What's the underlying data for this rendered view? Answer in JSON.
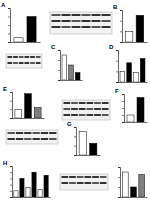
{
  "chart_data": [
    {
      "type": "bar",
      "title": "A",
      "categories": [
        null,
        null
      ],
      "values": [
        1,
        6
      ],
      "colors": [
        "#ffffff",
        "#000000"
      ],
      "ylim": [
        0,
        8
      ],
      "yticks": [
        0,
        2,
        4,
        6,
        8
      ],
      "tick_labels": false
    },
    {
      "type": "bar",
      "title": "B",
      "categories": [
        null,
        null
      ],
      "values": [
        1,
        2.5
      ],
      "colors": [
        "#ffffff",
        "#000000"
      ],
      "ylim": [
        0,
        3
      ],
      "yticks": [
        0,
        1,
        2,
        3
      ],
      "tick_labels": false
    },
    {
      "type": "bar",
      "title": "C",
      "categories": [
        null,
        null,
        null
      ],
      "values": [
        1,
        0.6,
        0.3
      ],
      "colors": [
        "#ffffff",
        "#808080",
        "#000000"
      ],
      "ylim": [
        0,
        1.2
      ],
      "yticks": [
        0,
        0.4,
        0.8,
        1.2
      ],
      "tick_labels": false
    },
    {
      "type": "bar",
      "title": "D",
      "categories": [
        null,
        null,
        null,
        null
      ],
      "values": [
        1,
        1.8,
        0.9,
        2.2
      ],
      "colors": [
        "#ffffff",
        "#000000",
        "#ffffff",
        "#000000"
      ],
      "ylim": [
        0,
        3
      ],
      "yticks": [
        0,
        1,
        2,
        3
      ],
      "tick_labels": false
    },
    {
      "type": "bar",
      "title": "E",
      "categories": [
        null,
        null,
        null
      ],
      "values": [
        1,
        2.8,
        1.2
      ],
      "colors": [
        "#ffffff",
        "#000000",
        "#808080"
      ],
      "ylim": [
        0,
        3
      ],
      "yticks": [
        0,
        1,
        2,
        3
      ],
      "tick_labels": false
    },
    {
      "type": "bar",
      "title": "F",
      "categories": [
        null,
        null
      ],
      "values": [
        1,
        3.5
      ],
      "colors": [
        "#ffffff",
        "#000000"
      ],
      "ylim": [
        0,
        4
      ],
      "yticks": [
        0,
        1,
        2,
        3,
        4
      ],
      "tick_labels": false
    },
    {
      "type": "bar",
      "title": "G",
      "categories": [
        null,
        null
      ],
      "values": [
        1,
        0.5
      ],
      "colors": [
        "#ffffff",
        "#000000"
      ],
      "ylim": [
        0,
        1.2
      ],
      "yticks": [
        0,
        0.4,
        0.8,
        1.2
      ],
      "tick_labels": false
    },
    {
      "type": "bar",
      "title": "H",
      "categories": [
        null,
        null,
        null,
        null,
        null,
        null
      ],
      "values": [
        1,
        3,
        1.5,
        4,
        1.2,
        3.5
      ],
      "colors": [
        "#ffffff",
        "#000000",
        "#ffffff",
        "#000000",
        "#ffffff",
        "#000000"
      ],
      "ylim": [
        0,
        5
      ],
      "yticks": [
        0,
        1,
        2,
        3,
        4,
        5
      ],
      "tick_labels": false
    },
    {
      "type": "bar",
      "categories": [
        null,
        null,
        null
      ],
      "values": [
        1,
        0.4,
        0.9
      ],
      "colors": [
        "#ffffff",
        "#000000",
        "#808080"
      ],
      "ylim": [
        0,
        1.2
      ],
      "yticks": [
        0,
        0.4,
        0.8,
        1.2
      ],
      "tick_labels": false
    }
  ]
}
